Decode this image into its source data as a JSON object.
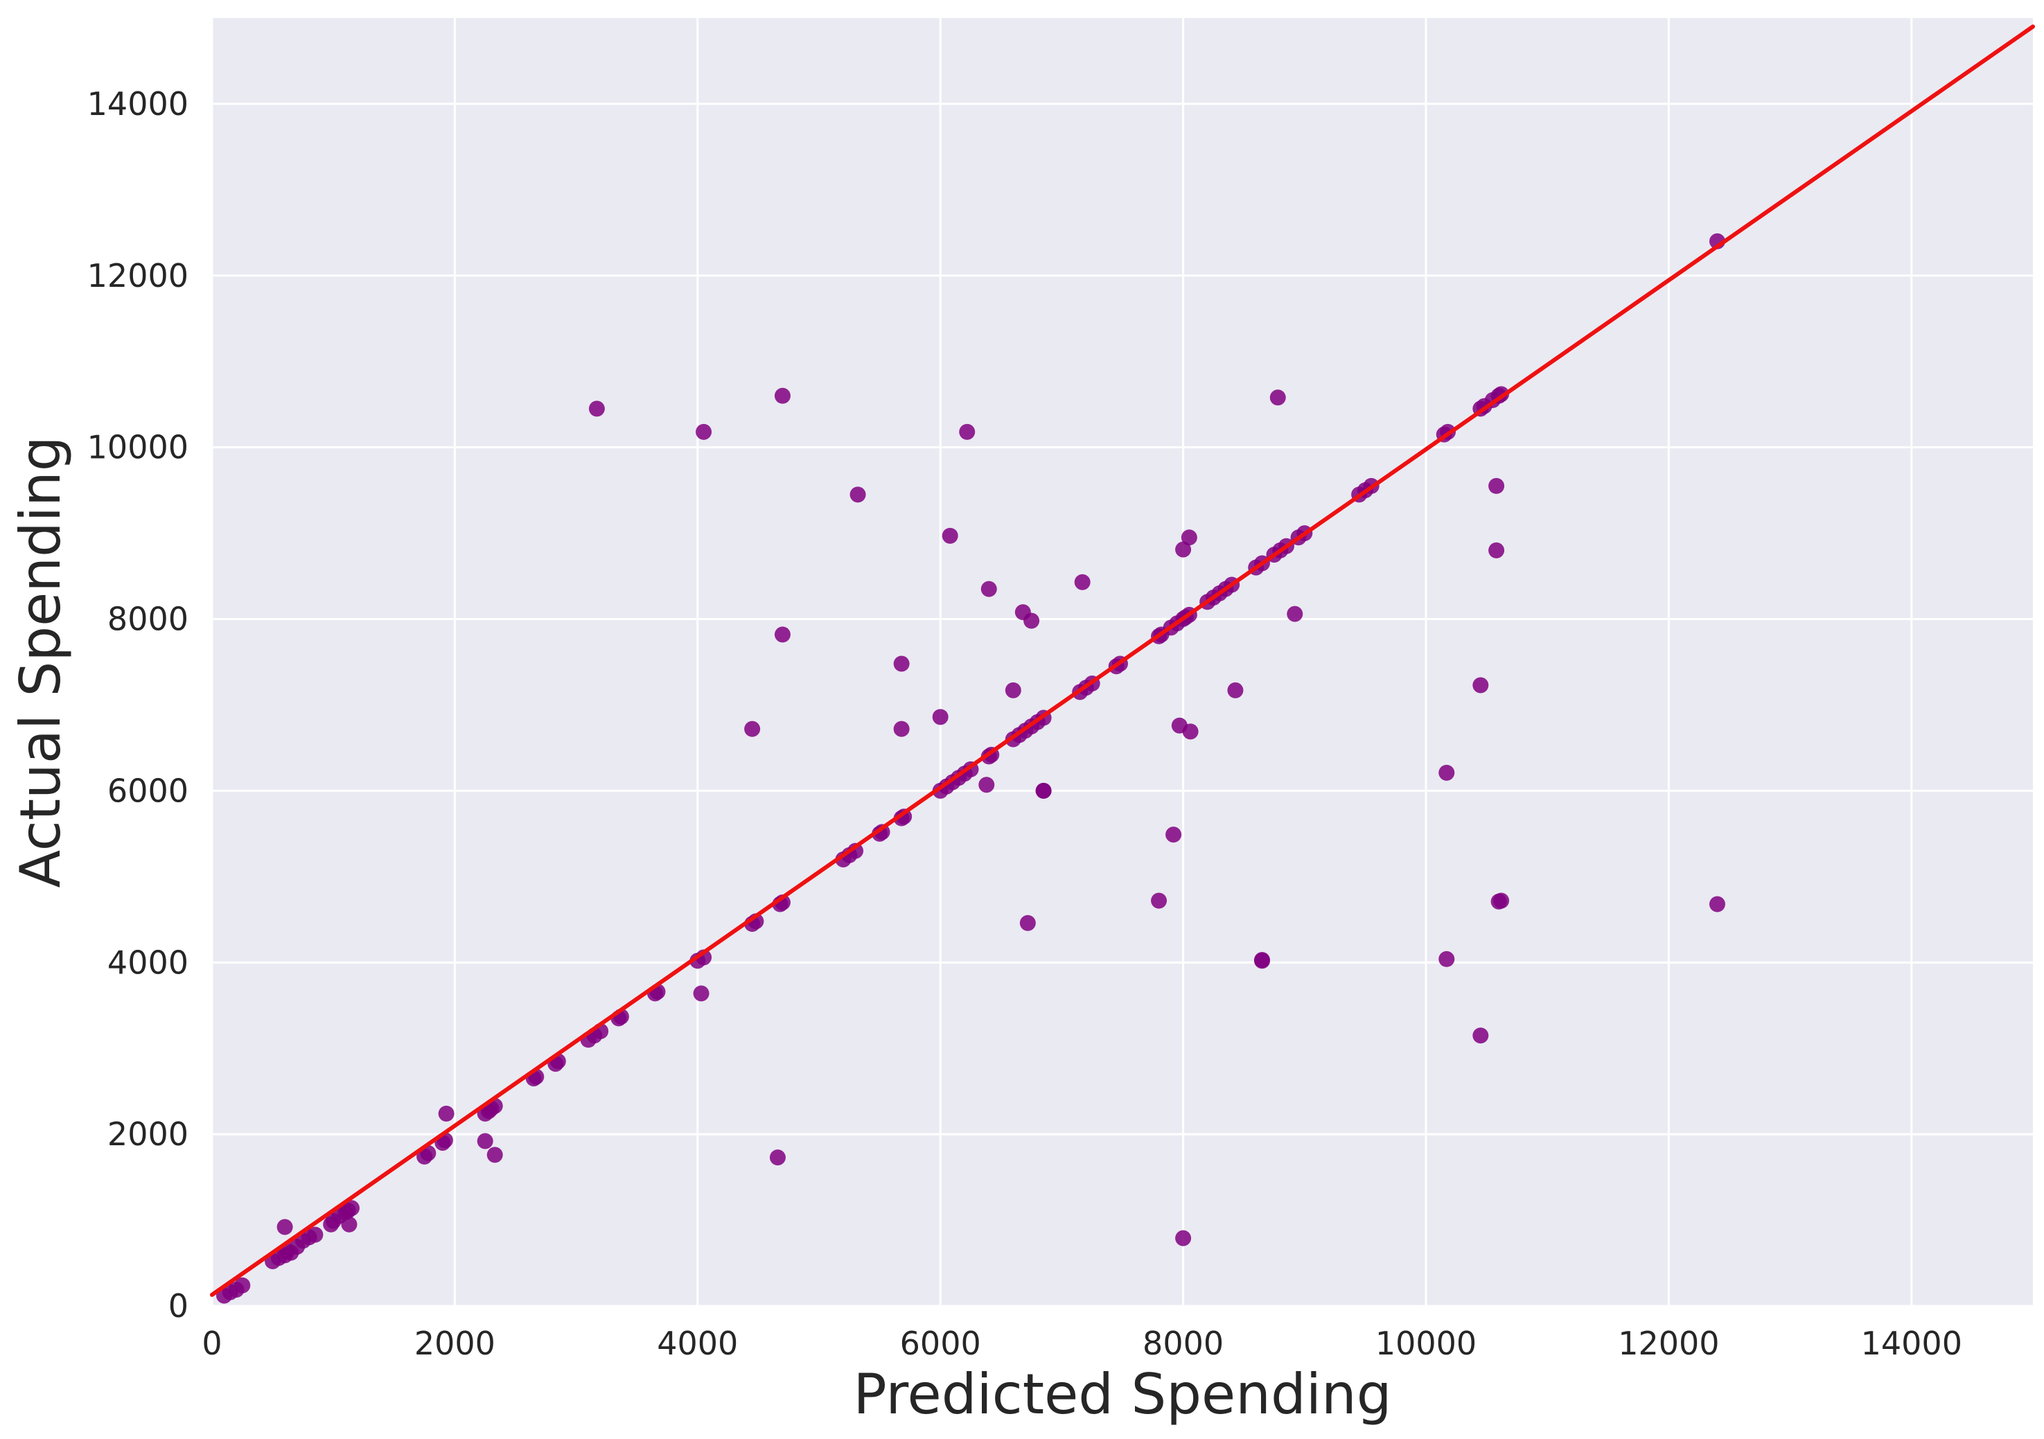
{
  "chart_data": {
    "type": "scatter",
    "title": "",
    "xlabel": "Predicted Spending",
    "ylabel": "Actual Spending",
    "xlim": [
      0,
      15000
    ],
    "ylim": [
      0,
      15000
    ],
    "xticks": [
      0,
      2000,
      4000,
      6000,
      8000,
      10000,
      12000,
      14000
    ],
    "yticks": [
      0,
      2000,
      4000,
      6000,
      8000,
      10000,
      12000,
      14000
    ],
    "xtick_labels": [
      "0",
      "2000",
      "4000",
      "6000",
      "8000",
      "10000",
      "12000",
      "14000"
    ],
    "ytick_labels": [
      "0",
      "2000",
      "4000",
      "6000",
      "8000",
      "10000",
      "12000",
      "14000"
    ],
    "grid": true,
    "colors": {
      "background": "#eaeaf2",
      "grid": "#ffffff",
      "points": "#800080",
      "fit_line": "#ee1111"
    },
    "fit_line": {
      "x": [
        0,
        15000
      ],
      "y": [
        130,
        14900
      ]
    },
    "points": {
      "x": [
        100,
        150,
        200,
        250,
        500,
        550,
        600,
        620,
        650,
        700,
        750,
        800,
        850,
        980,
        1000,
        1050,
        1100,
        1120,
        1150,
        1750,
        1780,
        1900,
        1920,
        2250,
        2280,
        2300,
        2330,
        2650,
        2670,
        2830,
        2850,
        3100,
        3150,
        3200,
        3350,
        3370,
        3650,
        3670,
        4000,
        4050,
        4450,
        4480,
        4680,
        4700,
        5200,
        5250,
        5300,
        5500,
        5520,
        5680,
        5700,
        6000,
        6050,
        6100,
        6150,
        6200,
        6250,
        6400,
        6420,
        6600,
        6650,
        6700,
        6750,
        6800,
        6850,
        7150,
        7200,
        7250,
        7450,
        7480,
        7800,
        7820,
        7900,
        7950,
        8000,
        8020,
        8050,
        8200,
        8250,
        8300,
        8350,
        8400,
        8600,
        8650,
        8750,
        8800,
        8850,
        8950,
        9000,
        9450,
        9500,
        9550,
        10150,
        10180,
        10450,
        10480,
        10550,
        10600,
        10620,
        12400,
        3170,
        4050,
        4700,
        6220,
        5320,
        6080,
        6400,
        6680,
        6750,
        7170,
        8050,
        8000,
        8780,
        10580,
        10580,
        4700,
        4450,
        5680,
        5680,
        6000,
        6600,
        6850,
        7970,
        8060,
        8430,
        8920,
        10450,
        10170,
        10600,
        10170,
        10450,
        10620,
        7800,
        6720,
        8650,
        8650,
        8000,
        7920,
        6380,
        6850,
        4660,
        4030,
        2330,
        2250,
        1930,
        1130,
        600,
        12400
      ],
      "y": [
        120,
        160,
        190,
        240,
        520,
        560,
        590,
        640,
        620,
        690,
        760,
        800,
        830,
        950,
        990,
        1050,
        1090,
        1110,
        1140,
        1740,
        1780,
        1900,
        1930,
        2240,
        2270,
        2300,
        2330,
        2650,
        2670,
        2820,
        2850,
        3100,
        3150,
        3200,
        3350,
        3370,
        3640,
        3660,
        4020,
        4060,
        4450,
        4480,
        4680,
        4700,
        5200,
        5250,
        5300,
        5500,
        5520,
        5680,
        5700,
        6000,
        6050,
        6100,
        6150,
        6200,
        6250,
        6400,
        6420,
        6600,
        6650,
        6700,
        6750,
        6800,
        6850,
        7150,
        7200,
        7250,
        7450,
        7480,
        7800,
        7820,
        7900,
        7950,
        8000,
        8020,
        8050,
        8200,
        8250,
        8300,
        8350,
        8400,
        8600,
        8650,
        8750,
        8800,
        8850,
        8950,
        9000,
        9450,
        9500,
        9550,
        10150,
        10180,
        10450,
        10480,
        10550,
        10600,
        10620,
        12400,
        10450,
        10180,
        10600,
        10180,
        9450,
        8970,
        8350,
        8080,
        7980,
        8430,
        8950,
        8810,
        10580,
        9550,
        8800,
        7820,
        6720,
        7480,
        6720,
        6860,
        7170,
        6000,
        6760,
        6690,
        7170,
        8060,
        7230,
        6210,
        4710,
        4040,
        3150,
        4720,
        4720,
        4460,
        4030,
        4020,
        790,
        5490,
        6070,
        6000,
        1730,
        3640,
        1760,
        1920,
        2240,
        950,
        920,
        4680
      ]
    }
  }
}
